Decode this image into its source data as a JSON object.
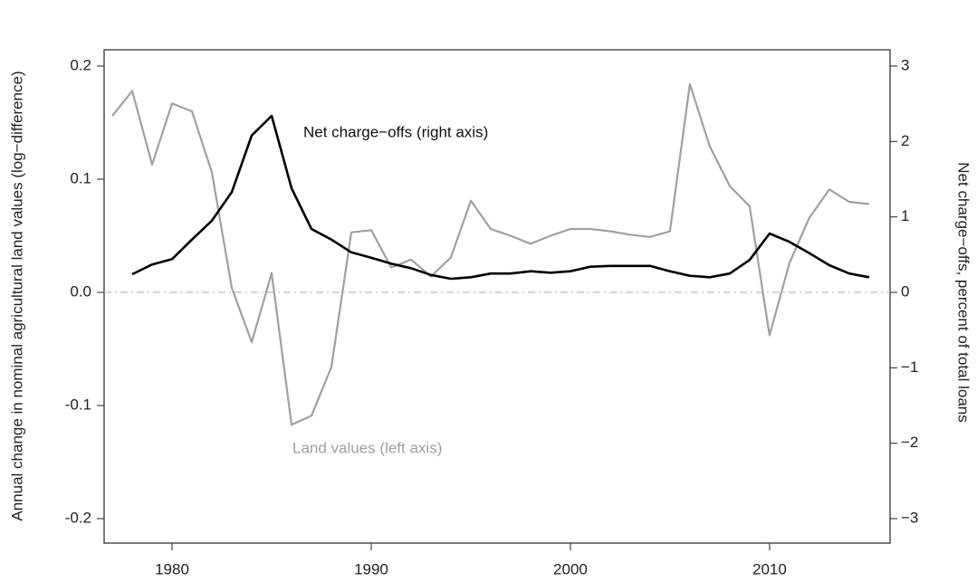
{
  "chart_data": {
    "type": "line",
    "x": [
      1977,
      1978,
      1979,
      1980,
      1981,
      1982,
      1983,
      1984,
      1985,
      1986,
      1987,
      1988,
      1989,
      1990,
      1991,
      1992,
      1993,
      1994,
      1995,
      1996,
      1997,
      1998,
      1999,
      2000,
      2001,
      2002,
      2003,
      2004,
      2005,
      2006,
      2007,
      2008,
      2009,
      2010,
      2011,
      2012,
      2013,
      2014,
      2015
    ],
    "series": [
      {
        "name": "Land values (left axis)",
        "color": "#a0a0a0",
        "values": [
          0.156,
          0.178,
          0.113,
          0.167,
          0.16,
          0.106,
          0.004,
          -0.044,
          0.017,
          -0.117,
          -0.109,
          -0.066,
          0.053,
          0.055,
          0.022,
          0.029,
          0.014,
          0.031,
          0.081,
          0.056,
          0.05,
          0.043,
          0.05,
          0.056,
          0.056,
          0.054,
          0.051,
          0.049,
          0.054,
          0.184,
          0.129,
          0.094,
          0.076,
          -0.038,
          0.026,
          0.066,
          0.091,
          0.08,
          0.078
        ]
      },
      {
        "name": "Net charge−offs (right axis)",
        "color": "#000000",
        "axis": "y2",
        "values": [
          null,
          0.24,
          0.37,
          0.44,
          0.7,
          0.95,
          1.33,
          2.08,
          2.34,
          1.38,
          0.84,
          0.7,
          0.53,
          0.46,
          0.38,
          0.32,
          0.23,
          0.18,
          0.2,
          0.25,
          0.25,
          0.28,
          0.26,
          0.28,
          0.34,
          0.35,
          0.35,
          0.35,
          0.28,
          0.22,
          0.2,
          0.25,
          0.43,
          0.78,
          0.67,
          0.52,
          0.36,
          0.25,
          0.2
        ]
      }
    ],
    "y_label": "Annual change in nominal agricultural land values (log−difference)",
    "y2_label": "Net charge−offs, percent of total loans",
    "xlim": [
      1976.59,
      2016.05
    ],
    "xticks": [
      1980,
      1990,
      2000,
      2010
    ],
    "ylim": [
      -0.2216,
      0.2144
    ],
    "yticks": [
      {
        "value": -0.2,
        "label": "-0.2"
      },
      -0.1,
      {
        "value": 0,
        "label": "0.0"
      },
      0.1,
      0.2
    ],
    "y2lim": [
      -3.324,
      3.216
    ],
    "y2ticks": [
      {
        "value": -3,
        "label": "−3"
      },
      {
        "value": -2,
        "label": "−2"
      },
      {
        "value": -1,
        "label": "−1"
      },
      0,
      1,
      2,
      3
    ],
    "hline": 0
  }
}
